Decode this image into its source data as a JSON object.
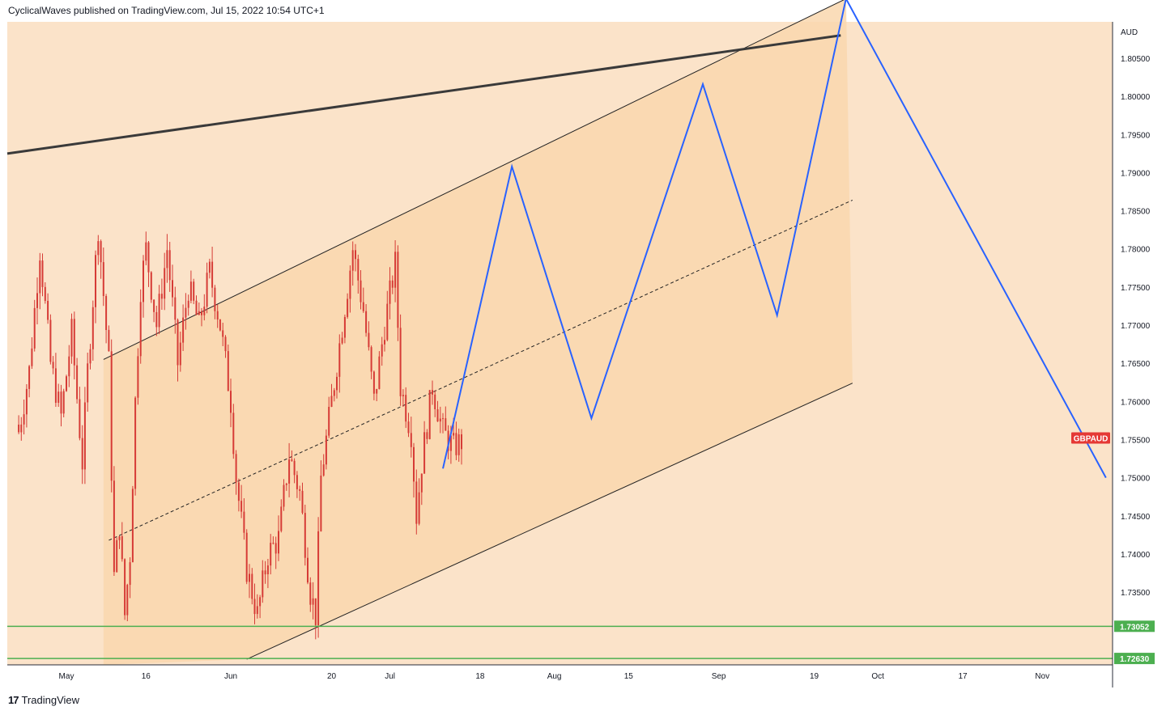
{
  "header": {
    "text": "CyclicalWaves published on TradingView.com, Jul 15, 2022 10:54 UTC+1"
  },
  "footer": {
    "logo": "17",
    "brand": "TradingView"
  },
  "colors": {
    "plot_bg": "#fbe3c9",
    "channel_fill": "#f9d7ae",
    "candle": "#d63b36",
    "forecast": "#2962ff",
    "support": "#4caf50",
    "symbol_badge": "#e53935",
    "trendline": "#3a3a3a"
  },
  "chart_data": {
    "type": "candlestick",
    "symbol": "GBPAUD",
    "currency": "AUD",
    "y_range": [
      1.722,
      1.812
    ],
    "y_ticks": [
      1.805,
      1.8,
      1.795,
      1.79,
      1.785,
      1.78,
      1.775,
      1.77,
      1.765,
      1.76,
      1.755,
      1.75,
      1.745,
      1.74,
      1.735
    ],
    "y_tick_labels": [
      "1.80500",
      "1.80000",
      "1.79500",
      "1.79000",
      "1.78500",
      "1.78000",
      "1.77500",
      "1.77000",
      "1.76500",
      "1.76000",
      "1.75500",
      "1.75000",
      "1.74500",
      "1.74000",
      "1.73500"
    ],
    "x_labels": [
      "May",
      "16",
      "Jun",
      "20",
      "Jul",
      "18",
      "Aug",
      "15",
      "Sep",
      "19",
      "Oct",
      "17",
      "Nov"
    ],
    "x_label_dates": [
      "2022-05-01",
      "2022-05-16",
      "2022-06-01",
      "2022-06-20",
      "2022-07-01",
      "2022-07-18",
      "2022-08-01",
      "2022-08-15",
      "2022-09-01",
      "2022-09-19",
      "2022-10-01",
      "2022-10-17",
      "2022-11-01"
    ],
    "price_path": [
      [
        "2022-04-22",
        1.756
      ],
      [
        "2022-04-24",
        1.764
      ],
      [
        "2022-04-26",
        1.78
      ],
      [
        "2022-04-28",
        1.765
      ],
      [
        "2022-04-30",
        1.758
      ],
      [
        "2022-05-02",
        1.769
      ],
      [
        "2022-05-04",
        1.752
      ],
      [
        "2022-05-05",
        1.764
      ],
      [
        "2022-05-07",
        1.783
      ],
      [
        "2022-05-09",
        1.765
      ],
      [
        "2022-05-10",
        1.737
      ],
      [
        "2022-05-11",
        1.744
      ],
      [
        "2022-05-12",
        1.732
      ],
      [
        "2022-05-13",
        1.74
      ],
      [
        "2022-05-14",
        1.76
      ],
      [
        "2022-05-15",
        1.775
      ],
      [
        "2022-05-16",
        1.78
      ],
      [
        "2022-05-18",
        1.77
      ],
      [
        "2022-05-20",
        1.78
      ],
      [
        "2022-05-22",
        1.765
      ],
      [
        "2022-05-24",
        1.775
      ],
      [
        "2022-05-26",
        1.77
      ],
      [
        "2022-05-28",
        1.777
      ],
      [
        "2022-05-30",
        1.77
      ],
      [
        "2022-06-01",
        1.76
      ],
      [
        "2022-06-02",
        1.75
      ],
      [
        "2022-06-04",
        1.738
      ],
      [
        "2022-06-06",
        1.732
      ],
      [
        "2022-06-08",
        1.74
      ],
      [
        "2022-06-10",
        1.742
      ],
      [
        "2022-06-12",
        1.753
      ],
      [
        "2022-06-14",
        1.748
      ],
      [
        "2022-06-16",
        1.735
      ],
      [
        "2022-06-17",
        1.732
      ],
      [
        "2022-06-18",
        1.75
      ],
      [
        "2022-06-20",
        1.76
      ],
      [
        "2022-06-22",
        1.77
      ],
      [
        "2022-06-24",
        1.78
      ],
      [
        "2022-06-26",
        1.772
      ],
      [
        "2022-06-28",
        1.76
      ],
      [
        "2022-06-30",
        1.77
      ],
      [
        "2022-07-02",
        1.778
      ],
      [
        "2022-07-03",
        1.762
      ],
      [
        "2022-07-05",
        1.756
      ],
      [
        "2022-07-06",
        1.745
      ],
      [
        "2022-07-07",
        1.752
      ],
      [
        "2022-07-09",
        1.762
      ],
      [
        "2022-07-11",
        1.756
      ],
      [
        "2022-07-13",
        1.754
      ],
      [
        "2022-07-15",
        1.755
      ]
    ],
    "forecast_path": [
      [
        "2022-07-11",
        1.7512
      ],
      [
        "2022-07-24",
        1.7908
      ],
      [
        "2022-08-08",
        1.7578
      ],
      [
        "2022-08-29",
        1.8016
      ],
      [
        "2022-09-12",
        1.7713
      ],
      [
        "2022-09-25",
        1.8128
      ],
      [
        "2022-11-13",
        1.75
      ]
    ],
    "channel": {
      "upper": [
        [
          "2022-05-08",
          1.7655
        ],
        [
          "2022-09-25",
          1.8128
        ]
      ],
      "lower": [
        [
          "2022-06-04",
          1.7262
        ],
        [
          "2022-09-25",
          1.7624
        ]
      ],
      "mid": [
        [
          "2022-05-09",
          1.7418
        ],
        [
          "2022-09-25",
          1.7864
        ]
      ]
    },
    "long_trendline": [
      [
        "2022-04-22",
        1.7925
      ],
      [
        "2022-09-24",
        1.808
      ]
    ],
    "horizontal_levels": [
      {
        "value": 1.73052,
        "label": "1.73052"
      },
      {
        "value": 1.7263,
        "label": "1.72630"
      }
    ],
    "last_price": 1.755,
    "grid": false,
    "legend": "none"
  }
}
